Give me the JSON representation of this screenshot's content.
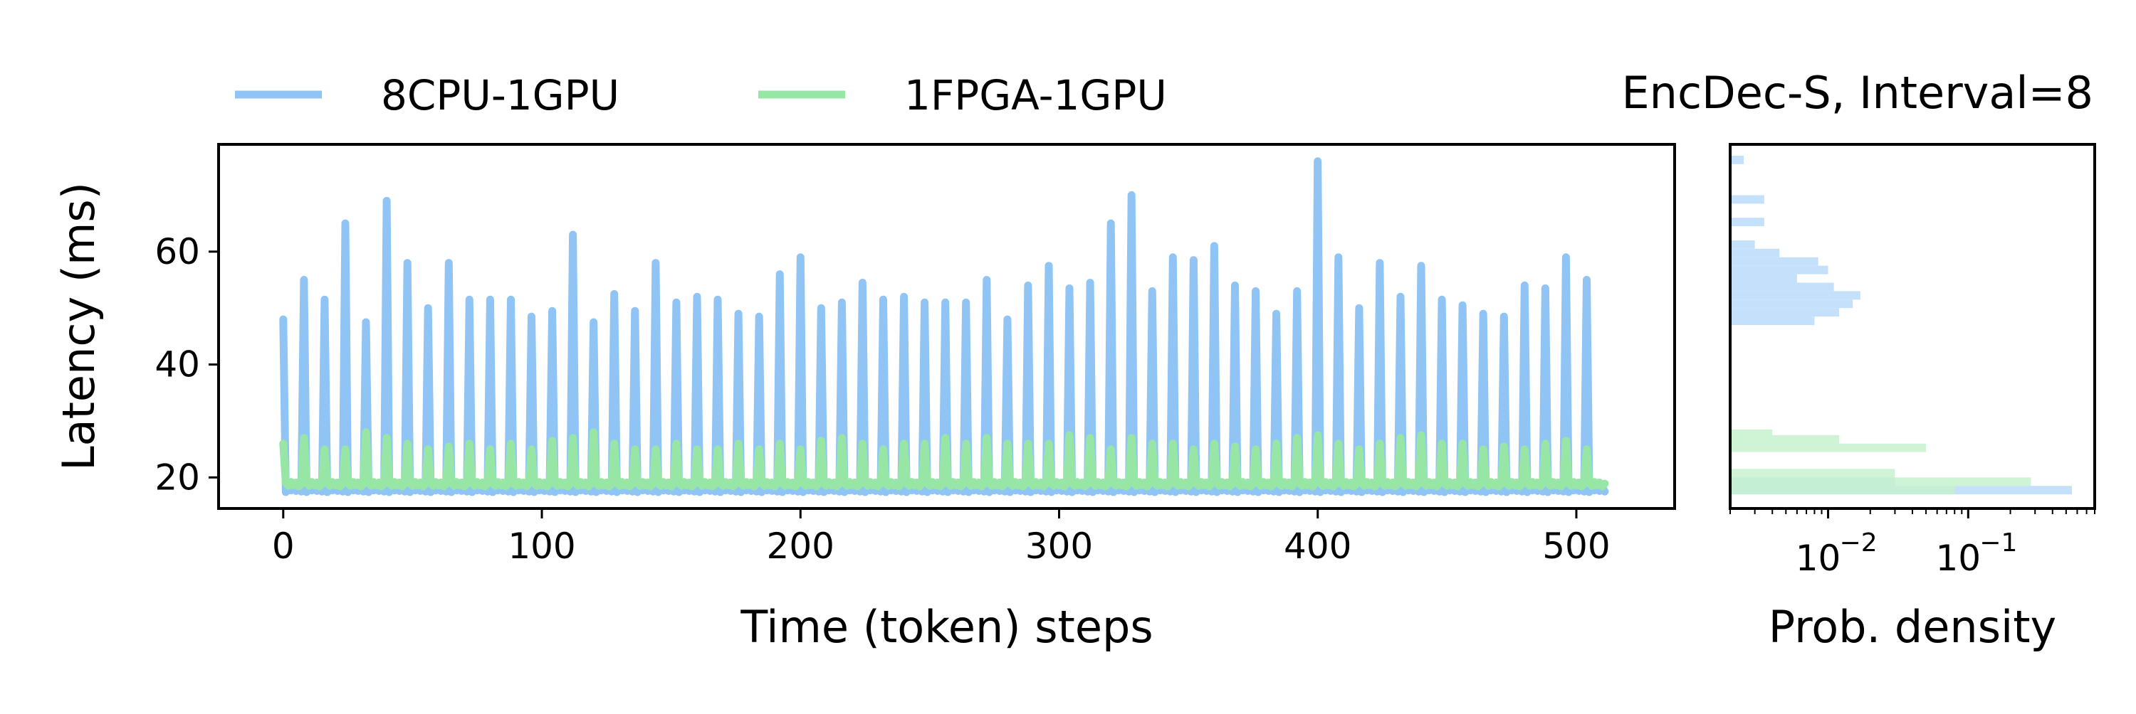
{
  "chart_data": [
    {
      "type": "line",
      "title": "EncDec-S, Interval=8",
      "xlabel": "Time (token) steps",
      "ylabel": "Latency (ms)",
      "xlim": [
        -25,
        538
      ],
      "ylim": [
        14.5,
        79
      ],
      "xticks": [
        0,
        100,
        200,
        300,
        400,
        500
      ],
      "yticks": [
        20,
        40,
        60
      ],
      "grid": false,
      "legend_position": "top-left",
      "series": [
        {
          "name": "8CPU-1GPU",
          "color": "#90c4f4",
          "baseline": 18,
          "period": 8,
          "x_end": 511,
          "spike_x": [
            0,
            8,
            16,
            24,
            32,
            40,
            48,
            56,
            64,
            72,
            80,
            88,
            96,
            104,
            112,
            120,
            128,
            136,
            144,
            152,
            160,
            168,
            176,
            184,
            192,
            200,
            208,
            216,
            224,
            232,
            240,
            248,
            256,
            264,
            272,
            280,
            288,
            296,
            304,
            312,
            320,
            328,
            336,
            344,
            352,
            360,
            368,
            376,
            384,
            392,
            400,
            408,
            416,
            424,
            432,
            440,
            448,
            456,
            464,
            472,
            480,
            488,
            496,
            504
          ],
          "spike_y": [
            48,
            55,
            51.5,
            65,
            47.5,
            69,
            58,
            50,
            58,
            51.5,
            51.5,
            51.5,
            48.5,
            49.5,
            63,
            47.5,
            52.5,
            49.5,
            58,
            51,
            52,
            51.5,
            49,
            48.5,
            56,
            59,
            50,
            51,
            54.5,
            51.5,
            52,
            51,
            51,
            51,
            55,
            48,
            54,
            57.5,
            53.5,
            54.5,
            65,
            70,
            53,
            59,
            58.5,
            61,
            54,
            53,
            49,
            53,
            76,
            59,
            50,
            58,
            52,
            57.5,
            51.5,
            50.5,
            49,
            48.5,
            54,
            53.5,
            59,
            55
          ]
        },
        {
          "name": "1FPGA-1GPU",
          "color": "#98e6a6",
          "baseline": 18.7,
          "period": 8,
          "x_end": 511,
          "spike_x": [
            0,
            8,
            16,
            24,
            32,
            40,
            48,
            56,
            64,
            72,
            80,
            88,
            96,
            104,
            112,
            120,
            128,
            136,
            144,
            152,
            160,
            168,
            176,
            184,
            192,
            200,
            208,
            216,
            224,
            232,
            240,
            248,
            256,
            264,
            272,
            280,
            288,
            296,
            304,
            312,
            320,
            328,
            336,
            344,
            352,
            360,
            368,
            376,
            384,
            392,
            400,
            408,
            416,
            424,
            432,
            440,
            448,
            456,
            464,
            472,
            480,
            488,
            496,
            504
          ],
          "spike_y": [
            26,
            27,
            25,
            25,
            28,
            27,
            26,
            25,
            25.5,
            26,
            25,
            26,
            25,
            26.5,
            27,
            28,
            26,
            25,
            25,
            26,
            25,
            25,
            26,
            25,
            26,
            25,
            26.5,
            27,
            26,
            25,
            26,
            26,
            27,
            26,
            27,
            26,
            26,
            26,
            27.5,
            27,
            25,
            27,
            26,
            26,
            25,
            26,
            25.5,
            25,
            26,
            27,
            27.5,
            26,
            25,
            26,
            27,
            27.5,
            26,
            26,
            25,
            25.5,
            25,
            26,
            26.5,
            25
          ]
        }
      ]
    },
    {
      "type": "bar",
      "orientation": "horizontal",
      "xlabel": "Prob. density",
      "x_scale": "log",
      "xlim": [
        0.002,
        0.8
      ],
      "ylim": [
        14.5,
        79
      ],
      "xticks": [
        0.01,
        0.1
      ],
      "xtick_labels": [
        "10",
        "10"
      ],
      "xtick_exponents": [
        "−2",
        "−1"
      ],
      "series": [
        {
          "name": "8CPU-1GPU",
          "color": "#c4e0fb",
          "bins": [
            [
              17,
              18.5,
              0.55
            ],
            [
              18.5,
              20,
              0.03
            ],
            [
              47,
              48.5,
              0.008
            ],
            [
              48.5,
              50,
              0.012
            ],
            [
              50,
              51.5,
              0.015
            ],
            [
              51.5,
              53,
              0.017
            ],
            [
              53,
              54.5,
              0.011
            ],
            [
              54.5,
              56,
              0.006
            ],
            [
              56,
              57.5,
              0.01
            ],
            [
              57.5,
              59,
              0.0085
            ],
            [
              59,
              60.5,
              0.0045
            ],
            [
              60.5,
              62,
              0.003
            ],
            [
              64.5,
              66,
              0.0035
            ],
            [
              68.5,
              70,
              0.0035
            ],
            [
              75.5,
              77,
              0.0025
            ]
          ]
        },
        {
          "name": "1FPGA-1GPU",
          "color": "#c6f1ce",
          "bins": [
            [
              17,
              18.5,
              0.08
            ],
            [
              18.5,
              20,
              0.28
            ],
            [
              20,
              21.5,
              0.03
            ],
            [
              24.5,
              26,
              0.05
            ],
            [
              26,
              27.5,
              0.012
            ],
            [
              27.5,
              28.5,
              0.004
            ]
          ]
        }
      ]
    }
  ]
}
